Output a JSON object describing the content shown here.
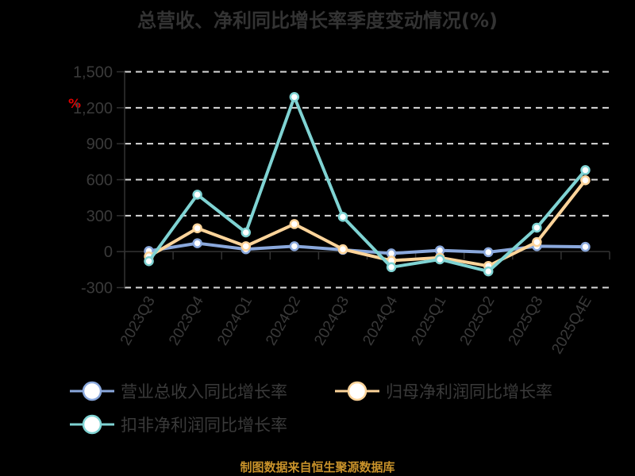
{
  "title": "总营收、净利同比增长率季度变动情况(%)",
  "unit_marker": "%",
  "source": "制图数据来自恒生聚源数据库",
  "colors": {
    "revenue": "#8aa8dc",
    "net_profit": "#fdd49a",
    "deducted_profit": "#7fd3d3",
    "grid": "#d9d9d9",
    "axis": "#333333",
    "source": "#c8922a"
  },
  "legend": [
    {
      "label": "营业总收入同比增长率",
      "color": "#8aa8dc"
    },
    {
      "label": "归母净利润同比增长率",
      "color": "#fdd49a"
    },
    {
      "label": "扣非净利润同比增长率",
      "color": "#7fd3d3"
    }
  ],
  "chart_data": {
    "type": "line",
    "title": "总营收、净利同比增长率季度变动情况(%)",
    "xlabel": "",
    "ylabel": "%",
    "categories": [
      "2023Q3",
      "2023Q4",
      "2024Q1",
      "2024Q2",
      "2024Q3",
      "2024Q4",
      "2025Q1",
      "2025Q2",
      "2025Q3",
      "2025Q4E"
    ],
    "yticks": [
      1500,
      1200,
      900,
      600,
      300,
      0,
      -300
    ],
    "ytick_labels": [
      "1,500",
      "1,200",
      "900",
      "600",
      "300",
      "0",
      "-300"
    ],
    "ylim": [
      -300,
      1500
    ],
    "grid": true,
    "legend_position": "bottom",
    "series": [
      {
        "name": "营业总收入同比增长率",
        "values": [
          5,
          70,
          20,
          45,
          15,
          -15,
          10,
          -5,
          45,
          40
        ]
      },
      {
        "name": "归母净利润同比增长率",
        "values": [
          -40,
          195,
          45,
          230,
          20,
          -75,
          -50,
          -120,
          80,
          595
        ]
      },
      {
        "name": "扣非净利润同比增长率",
        "values": [
          -80,
          475,
          160,
          1290,
          290,
          -130,
          -65,
          -165,
          200,
          680
        ]
      }
    ]
  }
}
